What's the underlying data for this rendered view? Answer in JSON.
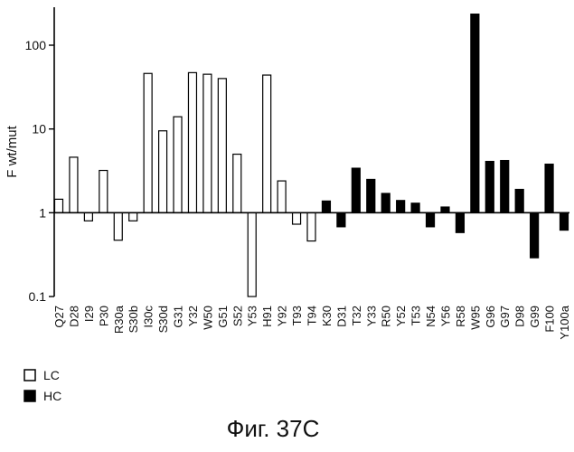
{
  "chart_data": {
    "type": "bar",
    "ylabel": "F wt/mut",
    "yscale": "log",
    "ylim": [
      0.1,
      250
    ],
    "yticks": [
      0.1,
      1,
      10,
      100
    ],
    "ytick_labels": [
      "0.1",
      "1",
      "10",
      "100"
    ],
    "baseline": 1,
    "categories": [
      "Q27",
      "D28",
      "I29",
      "P30",
      "R30a",
      "S30b",
      "I30c",
      "S30d",
      "G31",
      "Y32",
      "W50",
      "G51",
      "S52",
      "Y53",
      "H91",
      "Y92",
      "T93",
      "T94",
      "K30",
      "D31",
      "T32",
      "Y33",
      "R50",
      "Y52",
      "T53",
      "N54",
      "Y56",
      "R58",
      "W95",
      "G96",
      "G97",
      "D98",
      "G99",
      "F100",
      "Y100a"
    ],
    "values": [
      1.45,
      4.6,
      0.8,
      3.2,
      0.47,
      0.8,
      46,
      9.5,
      14,
      47,
      45,
      40,
      5,
      0.1,
      44,
      2.4,
      0.73,
      0.46,
      1.38,
      0.68,
      3.4,
      2.5,
      1.7,
      1.4,
      1.3,
      0.68,
      1.17,
      0.58,
      235,
      4.1,
      4.2,
      1.9,
      0.29,
      3.8,
      0.62
    ],
    "groups": [
      "LC",
      "LC",
      "LC",
      "LC",
      "LC",
      "LC",
      "LC",
      "LC",
      "LC",
      "LC",
      "LC",
      "LC",
      "LC",
      "LC",
      "LC",
      "LC",
      "LC",
      "LC",
      "HC",
      "HC",
      "HC",
      "HC",
      "HC",
      "HC",
      "HC",
      "HC",
      "HC",
      "HC",
      "HC",
      "HC",
      "HC",
      "HC",
      "HC",
      "HC",
      "HC"
    ],
    "legend": [
      {
        "name": "LC",
        "fill": "#ffffff"
      },
      {
        "name": "HC",
        "fill": "#000000"
      }
    ]
  },
  "caption": "Фиг. 37C"
}
